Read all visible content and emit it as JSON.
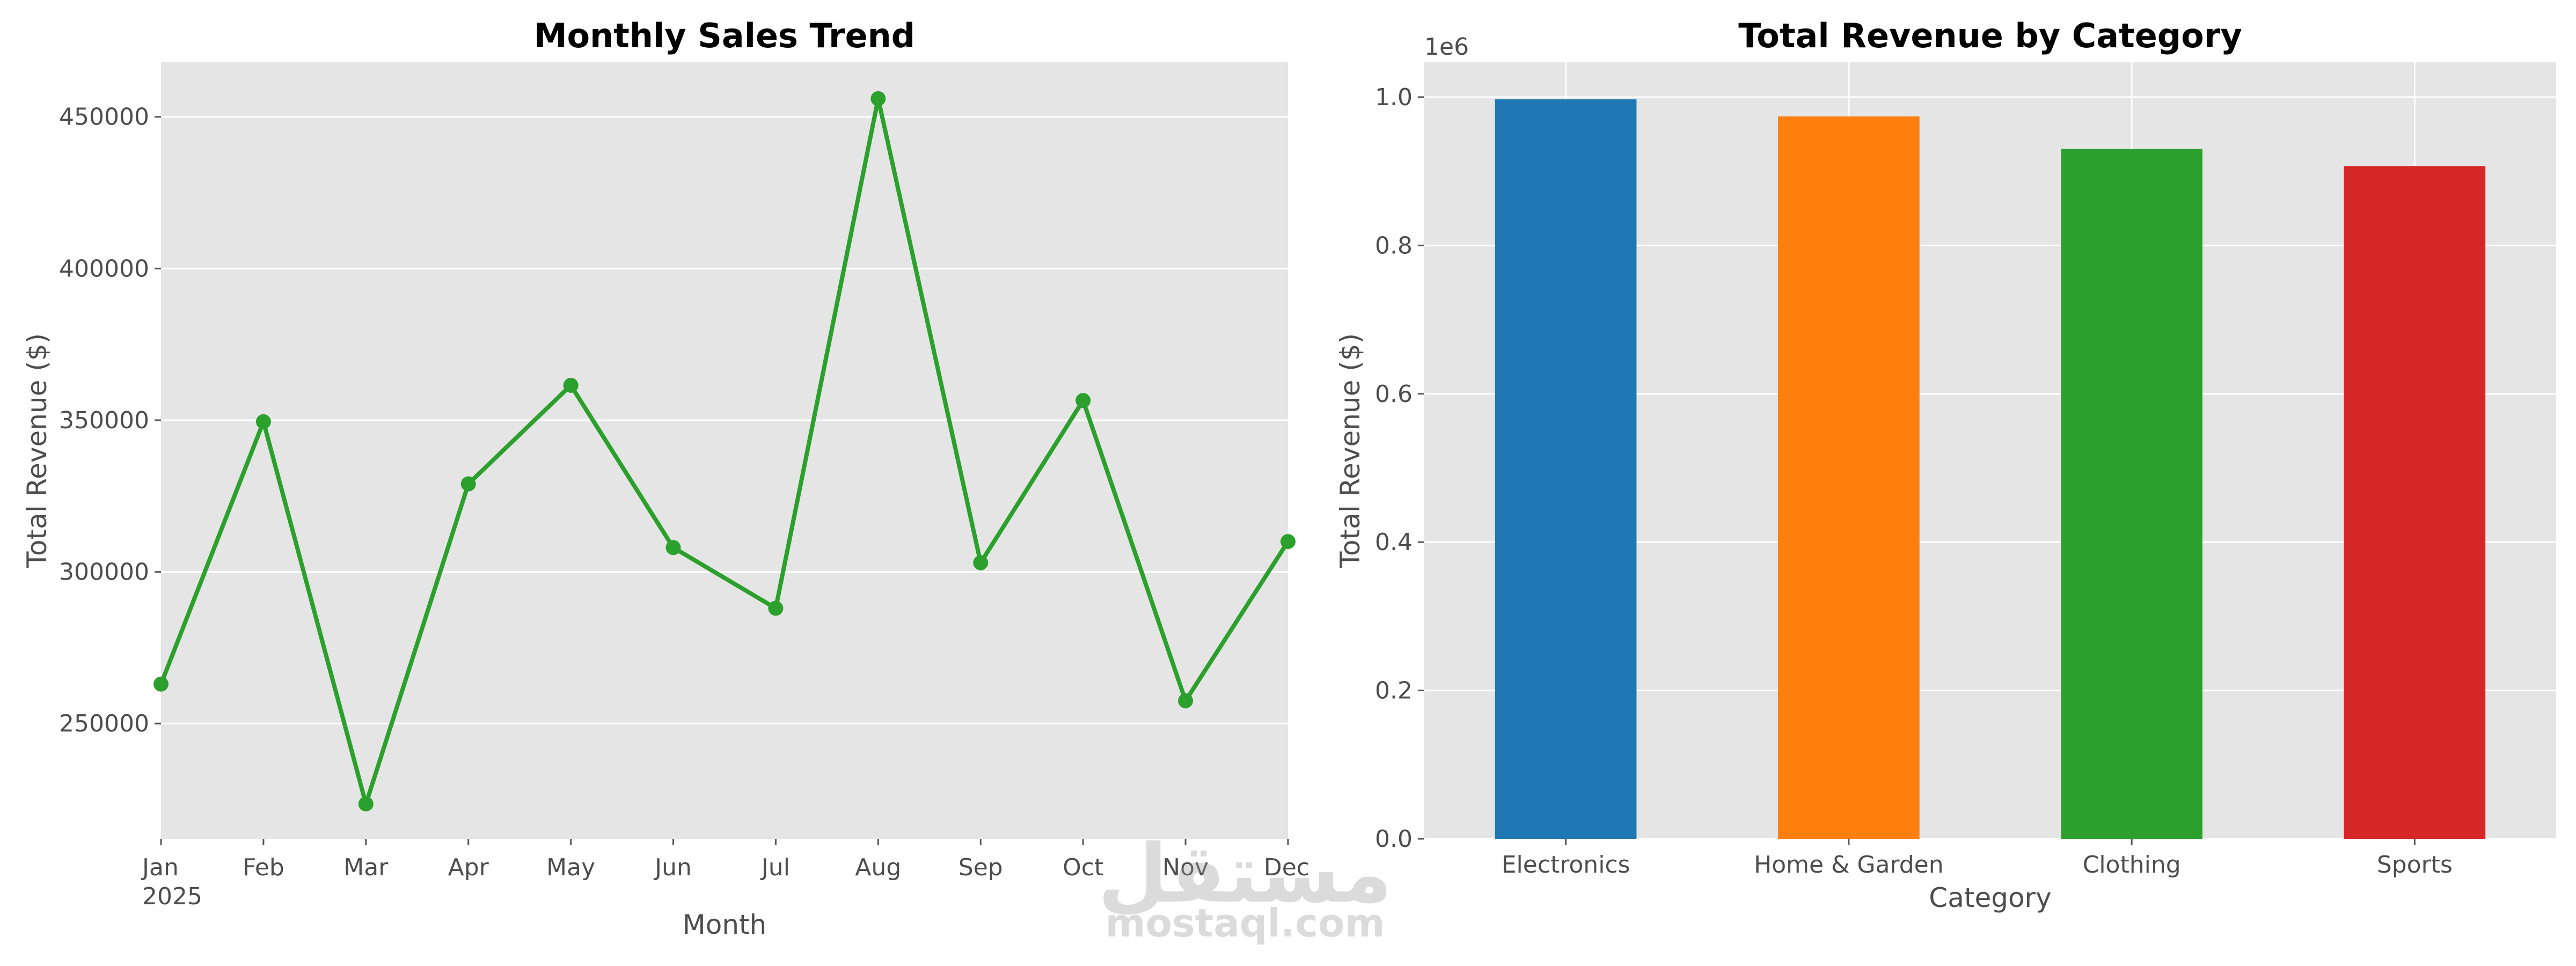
{
  "chart_data": [
    {
      "type": "line",
      "title": "Monthly Sales Trend",
      "xlabel": "Month",
      "ylabel": "Total Revenue ($)",
      "categories": [
        "Jan",
        "Feb",
        "Mar",
        "Apr",
        "May",
        "Jun",
        "Jul",
        "Aug",
        "Sep",
        "Oct",
        "Nov",
        "Dec"
      ],
      "year_label": "2025",
      "series": [
        {
          "values": [
            263000,
            349500,
            223500,
            329000,
            361500,
            308000,
            288000,
            456000,
            303000,
            356500,
            257500,
            310000
          ],
          "color": "#2ca02c"
        }
      ],
      "yticks": [
        250000,
        300000,
        350000,
        400000,
        450000
      ],
      "ylim": [
        212000,
        468000
      ],
      "grid": true,
      "background": "#e5e5e5"
    },
    {
      "type": "bar",
      "title": "Total Revenue by Category",
      "xlabel": "Category",
      "ylabel": "Total Revenue ($)",
      "categories": [
        "Electronics",
        "Home & Garden",
        "Clothing",
        "Sports"
      ],
      "values": [
        997000,
        974000,
        930000,
        907000
      ],
      "colors": [
        "#1f77b4",
        "#ff7f0e",
        "#2ca02c",
        "#d62728"
      ],
      "yticks": [
        "0.0",
        "0.2",
        "0.4",
        "0.6",
        "0.8",
        "1.0"
      ],
      "offset_label": "1e6",
      "ylim": [
        0,
        1047000
      ],
      "grid": true,
      "background": "#e5e5e5"
    }
  ],
  "watermark": {
    "arabic": "مستقل",
    "latin": "mostaql.com"
  }
}
